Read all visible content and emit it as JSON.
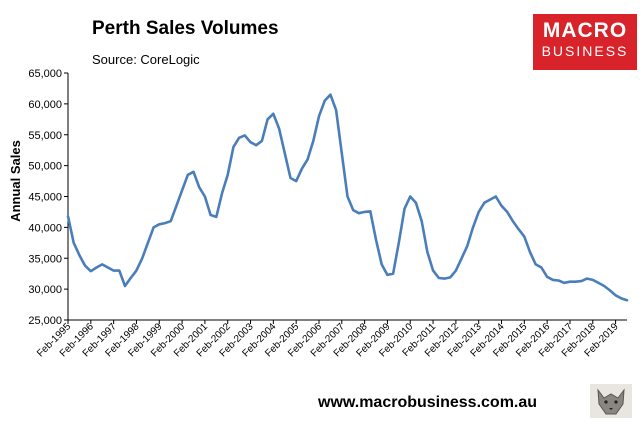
{
  "header": {
    "title": "Perth Sales Volumes",
    "source": "Source: CoreLogic"
  },
  "logo": {
    "line1": "MACRO",
    "line2": "BUSINESS"
  },
  "footer": {
    "website": "www.macrobusiness.com.au"
  },
  "colors": {
    "line": "#4a7ebb",
    "logo_bg": "#d8232a",
    "axis": "#000000"
  },
  "chart_data": {
    "type": "line",
    "title": "Perth Sales Volumes",
    "ylabel": "Annual Sales",
    "xlabel": "",
    "ylim": [
      25000,
      65000
    ],
    "yticks": [
      25000,
      30000,
      35000,
      40000,
      45000,
      50000,
      55000,
      60000,
      65000
    ],
    "ytick_labels": [
      "25,000",
      "30,000",
      "35,000",
      "40,000",
      "45,000",
      "50,000",
      "55,000",
      "60,000",
      "65,000"
    ],
    "xlim": [
      "1995-02",
      "2019-08"
    ],
    "xtick_labels": [
      "Feb-1995",
      "Feb-1996",
      "Feb-1997",
      "Feb-1998",
      "Feb-1999",
      "Feb-2000",
      "Feb-2001",
      "Feb-2002",
      "Feb-2003",
      "Feb-2004",
      "Feb-2005",
      "Feb-2006",
      "Feb-2007",
      "Feb-2008",
      "Feb-2009",
      "Feb-2010",
      "Feb-2011",
      "Feb-2012",
      "Feb-2013",
      "Feb-2014",
      "Feb-2015",
      "Feb-2016",
      "Feb-2017",
      "Feb-2018",
      "Feb-2019"
    ],
    "grid": false,
    "series": [
      {
        "x": [
          "1995-02",
          "1995-05",
          "1995-08",
          "1995-11",
          "1996-02",
          "1996-05",
          "1996-08",
          "1996-11",
          "1997-02",
          "1997-05",
          "1997-08",
          "1997-11",
          "1998-02",
          "1998-05",
          "1998-08",
          "1998-11",
          "1999-02",
          "1999-05",
          "1999-08",
          "1999-11",
          "2000-02",
          "2000-05",
          "2000-08",
          "2000-11",
          "2001-02",
          "2001-05",
          "2001-08",
          "2001-11",
          "2002-02",
          "2002-05",
          "2002-08",
          "2002-11",
          "2003-02",
          "2003-05",
          "2003-08",
          "2003-11",
          "2004-02",
          "2004-05",
          "2004-08",
          "2004-11",
          "2005-02",
          "2005-05",
          "2005-08",
          "2005-11",
          "2006-02",
          "2006-05",
          "2006-08",
          "2006-11",
          "2007-02",
          "2007-05",
          "2007-08",
          "2007-11",
          "2008-02",
          "2008-05",
          "2008-08",
          "2008-11",
          "2009-02",
          "2009-05",
          "2009-08",
          "2009-11",
          "2010-02",
          "2010-05",
          "2010-08",
          "2010-11",
          "2011-02",
          "2011-05",
          "2011-08",
          "2011-11",
          "2012-02",
          "2012-05",
          "2012-08",
          "2012-11",
          "2013-02",
          "2013-05",
          "2013-08",
          "2013-11",
          "2014-02",
          "2014-05",
          "2014-08",
          "2014-11",
          "2015-02",
          "2015-05",
          "2015-08",
          "2015-11",
          "2016-02",
          "2016-05",
          "2016-08",
          "2016-11",
          "2017-02",
          "2017-05",
          "2017-08",
          "2017-11",
          "2018-02",
          "2018-05",
          "2018-08",
          "2018-11",
          "2019-02",
          "2019-05",
          "2019-08"
        ],
        "values": [
          41800,
          37500,
          35500,
          33800,
          32900,
          33500,
          34000,
          33500,
          33000,
          33000,
          30500,
          31800,
          33000,
          35000,
          37500,
          40000,
          40500,
          40700,
          41000,
          43500,
          46000,
          48500,
          49000,
          46500,
          45000,
          42000,
          41700,
          45500,
          48500,
          53000,
          54500,
          54900,
          53800,
          53300,
          54000,
          57500,
          58400,
          56000,
          52000,
          48000,
          47500,
          49500,
          51000,
          54000,
          58000,
          60500,
          61500,
          59000,
          52000,
          45000,
          42800,
          42300,
          42500,
          42600,
          38000,
          34000,
          32300,
          32500,
          37500,
          43000,
          45000,
          44000,
          41000,
          36000,
          33000,
          31800,
          31700,
          31900,
          33000,
          35000,
          37000,
          40000,
          42500,
          44000,
          44500,
          45000,
          43500,
          42500,
          41000,
          39700,
          38500,
          36000,
          34000,
          33500,
          32000,
          31500,
          31400,
          31000,
          31200,
          31200,
          31300,
          31700,
          31500,
          31000,
          30500,
          29800,
          29000,
          28500,
          28200
        ]
      }
    ]
  }
}
